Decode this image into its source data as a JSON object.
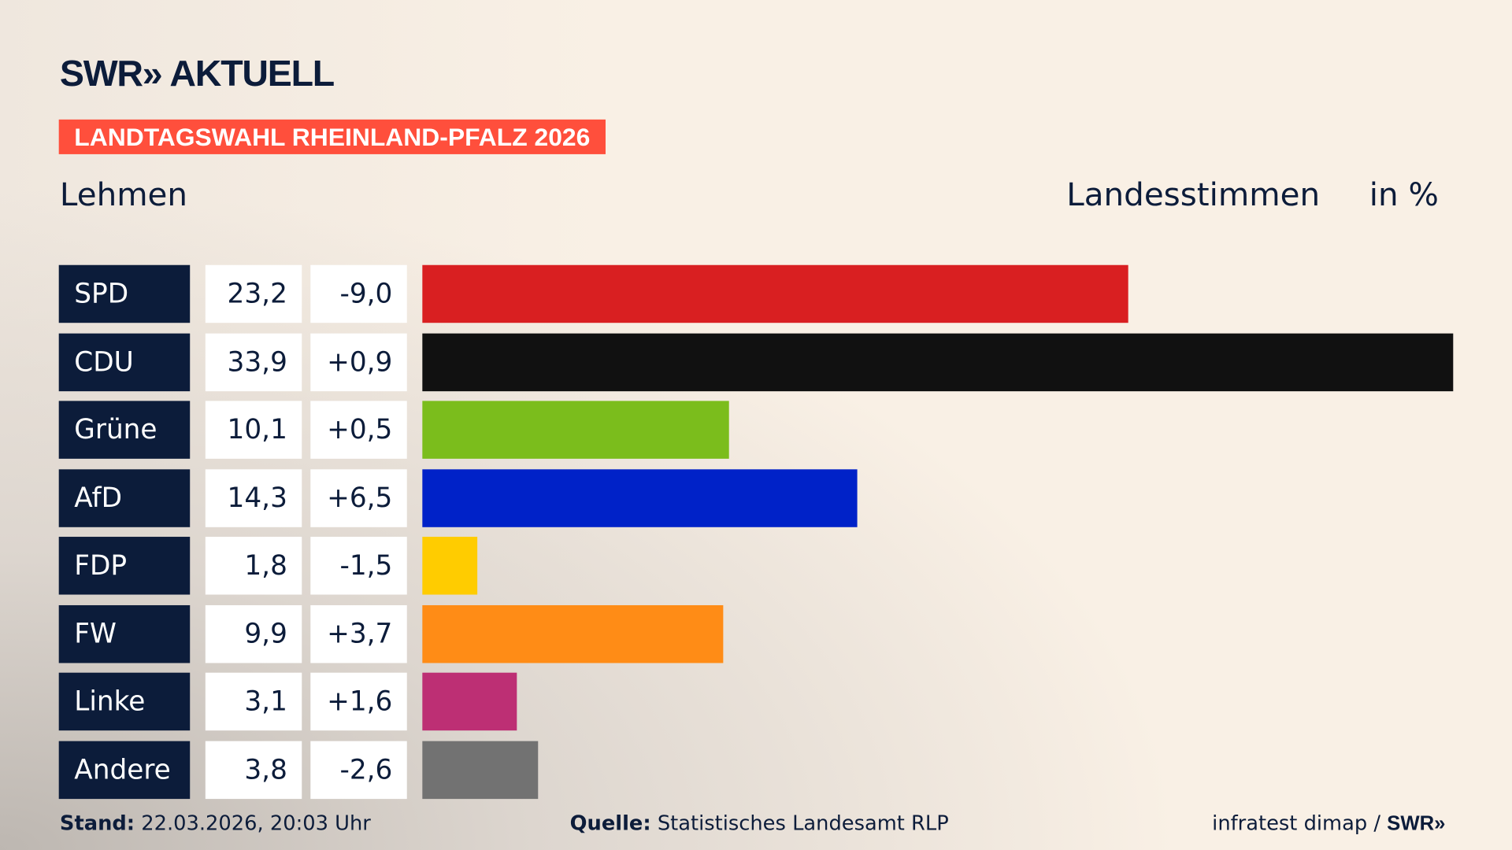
{
  "header": {
    "logo": "SWR» AKTUELL",
    "banner": "LANDTAGSWAHL RHEINLAND-PFALZ 2026",
    "location": "Lehmen",
    "metric": "Landesstimmen",
    "unit": "in %"
  },
  "chart_data": {
    "type": "bar",
    "orientation": "horizontal",
    "categories": [
      "SPD",
      "CDU",
      "Grüne",
      "AfD",
      "FDP",
      "FW",
      "Linke",
      "Andere"
    ],
    "values": [
      23.2,
      33.9,
      10.1,
      14.3,
      1.8,
      9.9,
      3.1,
      3.8
    ],
    "value_labels": [
      "23,2",
      "33,9",
      "10,1",
      "14,3",
      "1,8",
      "9,9",
      "3,1",
      "3,8"
    ],
    "diff_labels": [
      "-9,0",
      "+0,9",
      "+0,5",
      "+6,5",
      "-1,5",
      "+3,7",
      "+1,6",
      "-2,6"
    ],
    "diffs": [
      -9.0,
      0.9,
      0.5,
      6.5,
      -1.5,
      3.7,
      1.6,
      -2.6
    ],
    "colors": [
      "#d91f21",
      "#111111",
      "#7bbd1c",
      "#0022c8",
      "#ffcc00",
      "#ff8c16",
      "#bd2f74",
      "#727272"
    ],
    "xlim": [
      0,
      33.9
    ],
    "grid": false,
    "legend": "none"
  },
  "footer": {
    "stand_label": "Stand:",
    "stand_value": "22.03.2026, 20:03 Uhr",
    "source_label": "Quelle:",
    "source_value": "Statistisches Landesamt RLP",
    "credit": "infratest dimap / ",
    "credit_logo": "SWR»"
  }
}
